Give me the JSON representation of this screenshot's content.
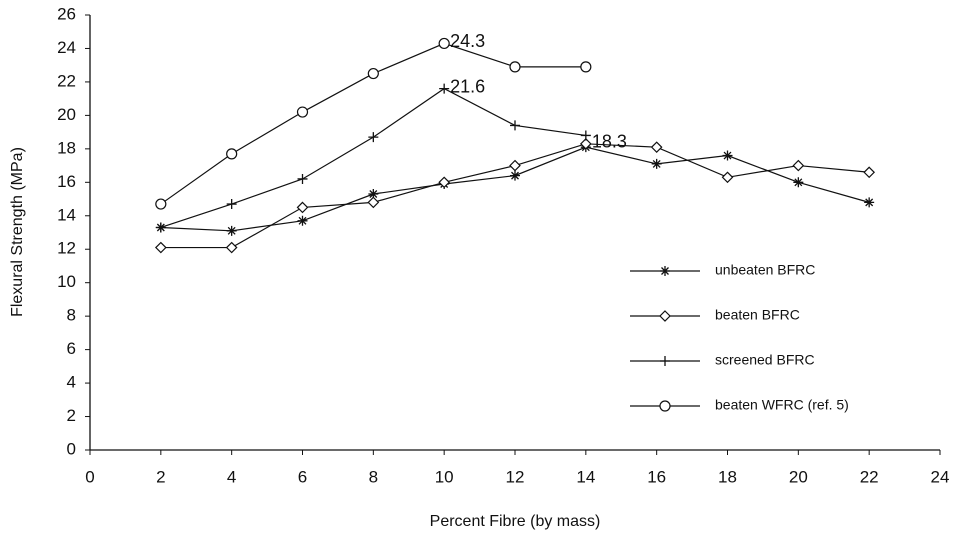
{
  "chart_data": {
    "type": "line",
    "x_label": "Percent Fibre (by mass)",
    "y_label": "Flexural Strength (MPa)",
    "xlim": [
      0,
      24
    ],
    "xticks": [
      0,
      2,
      4,
      6,
      8,
      10,
      12,
      14,
      16,
      18,
      20,
      22,
      24
    ],
    "ylim": [
      0,
      26
    ],
    "yticks": [
      0,
      2,
      4,
      6,
      8,
      10,
      12,
      14,
      16,
      18,
      20,
      22,
      24,
      26
    ],
    "grid": false,
    "legend": "lower right",
    "series": [
      {
        "name": "unbeaten BFRC",
        "color": "#111111",
        "marker": "asterisk",
        "x": [
          2,
          4,
          6,
          8,
          10,
          12,
          14,
          16,
          18,
          20,
          22
        ],
        "values": [
          13.3,
          13.1,
          13.7,
          15.3,
          15.9,
          16.4,
          18.1,
          17.1,
          17.6,
          16.0,
          14.8
        ]
      },
      {
        "name": "beaten BFRC",
        "color": "#111111",
        "marker": "diamond",
        "x": [
          2,
          4,
          6,
          8,
          10,
          12,
          14,
          16,
          18,
          20,
          22
        ],
        "values": [
          12.1,
          12.1,
          14.5,
          14.8,
          16.0,
          17.0,
          18.3,
          18.1,
          16.3,
          17.0,
          16.6
        ],
        "value_labels": [
          null,
          null,
          null,
          null,
          null,
          null,
          "18.3",
          null,
          null,
          null,
          null
        ]
      },
      {
        "name": "screened BFRC",
        "color": "#111111",
        "marker": "plus",
        "x": [
          2,
          4,
          6,
          8,
          10,
          12,
          14
        ],
        "values": [
          13.3,
          14.7,
          16.2,
          18.7,
          21.6,
          19.4,
          18.8
        ],
        "value_labels": [
          null,
          null,
          null,
          null,
          "21.6",
          null,
          null
        ]
      },
      {
        "name": "beaten WFRC (ref. 5)",
        "color": "#111111",
        "marker": "circle",
        "x": [
          2,
          4,
          6,
          8,
          10,
          12,
          14
        ],
        "values": [
          14.7,
          17.7,
          20.2,
          22.5,
          24.3,
          22.9,
          22.9
        ],
        "value_labels": [
          null,
          null,
          null,
          null,
          "24.3",
          null,
          null
        ]
      }
    ]
  }
}
